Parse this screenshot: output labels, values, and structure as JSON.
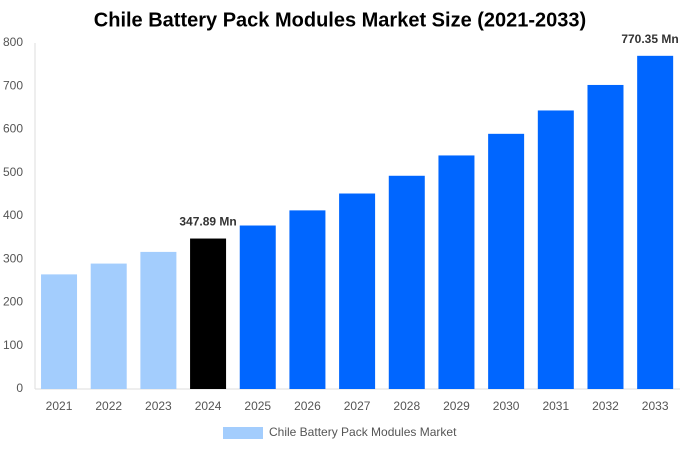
{
  "chart_data": {
    "type": "bar",
    "title": "Chile Battery Pack Modules Market Size (2021-2033)",
    "categories": [
      "2021",
      "2022",
      "2023",
      "2024",
      "2025",
      "2026",
      "2027",
      "2028",
      "2029",
      "2030",
      "2031",
      "2032",
      "2033"
    ],
    "series": [
      {
        "name": "Chile Battery Pack Modules Market",
        "color": "#a3cdfd",
        "values": [
          265,
          290,
          317,
          347.89,
          378,
          413,
          452,
          493,
          540,
          590,
          644,
          703,
          770.35
        ],
        "value_labels": [
          null,
          null,
          null,
          "347.89 Mn",
          null,
          null,
          null,
          null,
          null,
          null,
          null,
          null,
          "770.35 Mn"
        ],
        "colors": [
          "#a3cdfd",
          "#a3cdfd",
          "#a3cdfd",
          "#000000",
          "#0066ff",
          "#0066ff",
          "#0066ff",
          "#0066ff",
          "#0066ff",
          "#0066ff",
          "#0066ff",
          "#0066ff",
          "#0066ff"
        ]
      }
    ],
    "ylim": [
      0,
      800
    ],
    "yticks": [
      0,
      100,
      200,
      300,
      400,
      500,
      600,
      700,
      800
    ],
    "grid": false,
    "legend": "bottom"
  }
}
